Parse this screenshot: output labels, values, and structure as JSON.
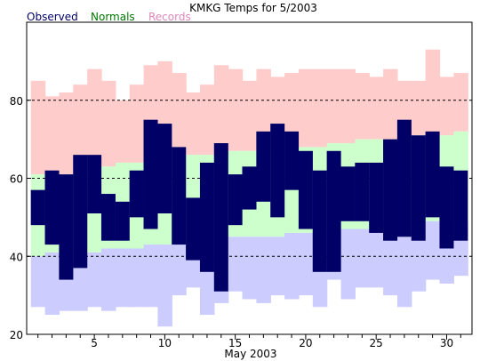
{
  "chart_data": {
    "type": "bar",
    "title": "KMKG Temps for 5/2003",
    "xlabel": "May 2003",
    "ylabel": "",
    "legend": [
      {
        "name": "Observed",
        "color": "#000066"
      },
      {
        "name": "Normals",
        "color": "#007700"
      },
      {
        "name": "Records",
        "color": "#dd88bb"
      }
    ],
    "legend_position": "top-left",
    "x": [
      1,
      2,
      3,
      4,
      5,
      6,
      7,
      8,
      9,
      10,
      11,
      12,
      13,
      14,
      15,
      16,
      17,
      18,
      19,
      20,
      21,
      22,
      23,
      24,
      25,
      26,
      27,
      28,
      29,
      30,
      31
    ],
    "xticks": [
      5,
      10,
      15,
      20,
      25,
      30
    ],
    "xlim": [
      0.2,
      31.8
    ],
    "ylim": [
      20,
      100
    ],
    "yticks": [
      20,
      40,
      60,
      80
    ],
    "grid_dashed_at": [
      40,
      60,
      80
    ],
    "colors": {
      "records": "#ffcccc",
      "normals": "#ccffcc",
      "record_low_band": "#ccccff",
      "observed": "#000066"
    },
    "series": [
      {
        "name": "Record High",
        "values": [
          85,
          81,
          82,
          84,
          88,
          85,
          80,
          84,
          89,
          90,
          87,
          82,
          84,
          89,
          88,
          85,
          88,
          86,
          87,
          88,
          88,
          88,
          88,
          87,
          86,
          88,
          85,
          85,
          93,
          86,
          87
        ]
      },
      {
        "name": "Normal High",
        "values": [
          61,
          61,
          61,
          62,
          62,
          63,
          64,
          64,
          64,
          65,
          65,
          66,
          66,
          66,
          67,
          67,
          67,
          67,
          68,
          68,
          68,
          69,
          69,
          70,
          70,
          70,
          70,
          71,
          71,
          71,
          72
        ]
      },
      {
        "name": "Normal Low",
        "values": [
          40,
          41,
          41,
          41,
          41,
          42,
          42,
          42,
          43,
          43,
          43,
          43,
          44,
          44,
          45,
          45,
          45,
          45,
          46,
          46,
          46,
          46,
          47,
          47,
          47,
          48,
          48,
          48,
          49,
          49,
          49
        ]
      },
      {
        "name": "Record Low",
        "values": [
          27,
          25,
          26,
          26,
          27,
          26,
          27,
          27,
          27,
          22,
          30,
          32,
          25,
          28,
          31,
          29,
          28,
          30,
          29,
          30,
          27,
          34,
          29,
          32,
          32,
          30,
          27,
          31,
          34,
          33,
          35
        ]
      },
      {
        "name": "Observed High",
        "values": [
          57,
          62,
          61,
          66,
          66,
          56,
          54,
          62,
          75,
          74,
          68,
          55,
          64,
          69,
          61,
          63,
          72,
          74,
          72,
          67,
          62,
          67,
          63,
          64,
          64,
          70,
          75,
          71,
          72,
          63,
          62
        ]
      },
      {
        "name": "Observed Low",
        "values": [
          48,
          43,
          34,
          37,
          51,
          44,
          44,
          50,
          47,
          51,
          43,
          39,
          36,
          31,
          48,
          52,
          54,
          50,
          57,
          47,
          36,
          36,
          49,
          49,
          46,
          44,
          45,
          44,
          50,
          42,
          44
        ]
      }
    ]
  }
}
